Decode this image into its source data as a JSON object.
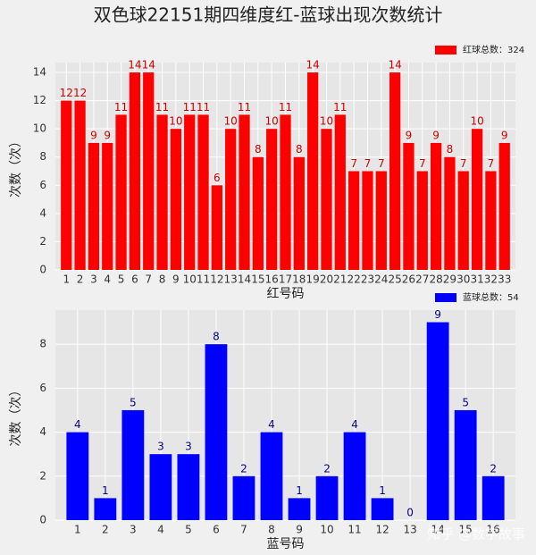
{
  "title": "双色球22151期四维度红-蓝球出现次数统计",
  "watermark": "知乎 @数字故事",
  "chart_data": [
    {
      "type": "bar",
      "x_label": "红号码",
      "y_label": "次数（次）",
      "categories": [
        "1",
        "2",
        "3",
        "4",
        "5",
        "6",
        "7",
        "8",
        "9",
        "10",
        "11",
        "12",
        "13",
        "14",
        "15",
        "16",
        "17",
        "18",
        "19",
        "20",
        "21",
        "22",
        "23",
        "24",
        "25",
        "26",
        "27",
        "28",
        "29",
        "30",
        "31",
        "32",
        "33"
      ],
      "series": [
        {
          "name": "红球总数：324",
          "color": "#ff0000",
          "label_color": "#cc0000",
          "values": [
            12,
            12,
            9,
            9,
            11,
            14,
            14,
            11,
            10,
            11,
            11,
            6,
            10,
            11,
            8,
            10,
            11,
            8,
            14,
            10,
            11,
            7,
            7,
            7,
            14,
            9,
            7,
            9,
            8,
            7,
            10,
            7,
            9
          ]
        }
      ],
      "ylim": [
        0,
        14.7
      ],
      "yticks": [
        0,
        2,
        4,
        6,
        8,
        10,
        12,
        14
      ],
      "grid": true,
      "legend": "upper right"
    },
    {
      "type": "bar",
      "x_label": "蓝号码",
      "y_label": "次数（次）",
      "categories": [
        "1",
        "2",
        "3",
        "4",
        "5",
        "6",
        "7",
        "8",
        "9",
        "10",
        "11",
        "12",
        "13",
        "14",
        "15",
        "16"
      ],
      "series": [
        {
          "name": "蓝球总数：54",
          "color": "#0000ff",
          "label_color": "#00008b",
          "values": [
            4,
            1,
            5,
            3,
            3,
            8,
            2,
            4,
            1,
            2,
            4,
            1,
            0,
            9,
            5,
            2
          ]
        }
      ],
      "ylim": [
        0,
        9.55
      ],
      "yticks": [
        0,
        2,
        4,
        6,
        8
      ],
      "grid": true,
      "legend": "upper right"
    }
  ]
}
